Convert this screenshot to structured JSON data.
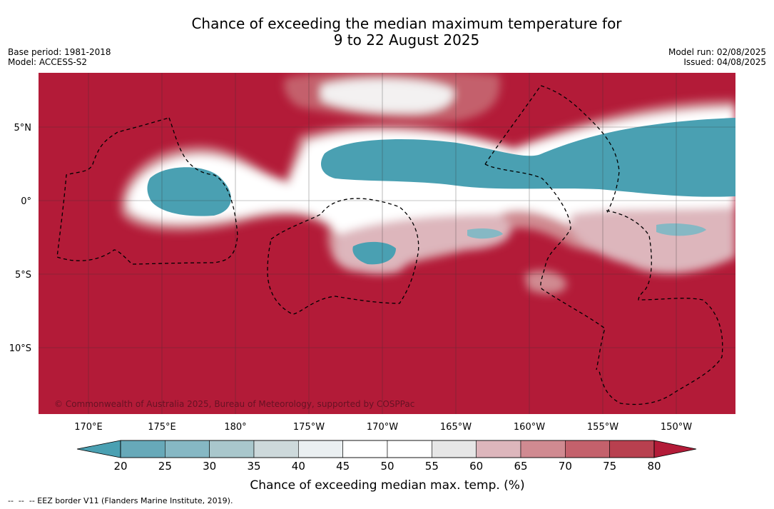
{
  "header": {
    "title_line1": "Chance of exceeding the median maximum temperature for",
    "title_line2": "9 to 22 August 2025",
    "base_period": "Base period: 1981-2018",
    "model": "Model: ACCESS-S2",
    "model_run": "Model run: 02/08/2025",
    "issued": "Issued: 04/08/2025"
  },
  "map": {
    "copyright": "© Commonwealth of Australia 2025, Bureau of Meteorology, supported by COSPPac",
    "lat_labels": [
      "5°N",
      "0°",
      "5°S",
      "10°S"
    ],
    "lon_labels": [
      "170°E",
      "175°E",
      "180°",
      "175°W",
      "170°W",
      "165°W",
      "160°W",
      "155°W",
      "150°W"
    ],
    "extent_lon": [
      167.5,
      212.5
    ],
    "extent_lat": [
      -15.2,
      8.4
    ],
    "background_color": "#b31b38",
    "ocean_low_color": "#4aa0b2"
  },
  "colorbar": {
    "ticks": [
      "20",
      "25",
      "30",
      "35",
      "40",
      "45",
      "50",
      "55",
      "60",
      "65",
      "70",
      "75",
      "80"
    ],
    "colors": [
      "#67a9b9",
      "#86b8c4",
      "#a9c7cc",
      "#cdd9db",
      "#eaeff1",
      "#ffffff",
      "#ffffff",
      "#e6e6e6",
      "#ddb6bc",
      "#d08a91",
      "#c4616c",
      "#b8404f"
    ],
    "under_color": "#4aa0b2",
    "over_color": "#b31b38",
    "label": "Chance of exceeding median max. temp. (%)"
  },
  "footer": {
    "legend_text": "--  --  -- EEZ border V11 (Flanders Marine Institute, 2019)."
  }
}
